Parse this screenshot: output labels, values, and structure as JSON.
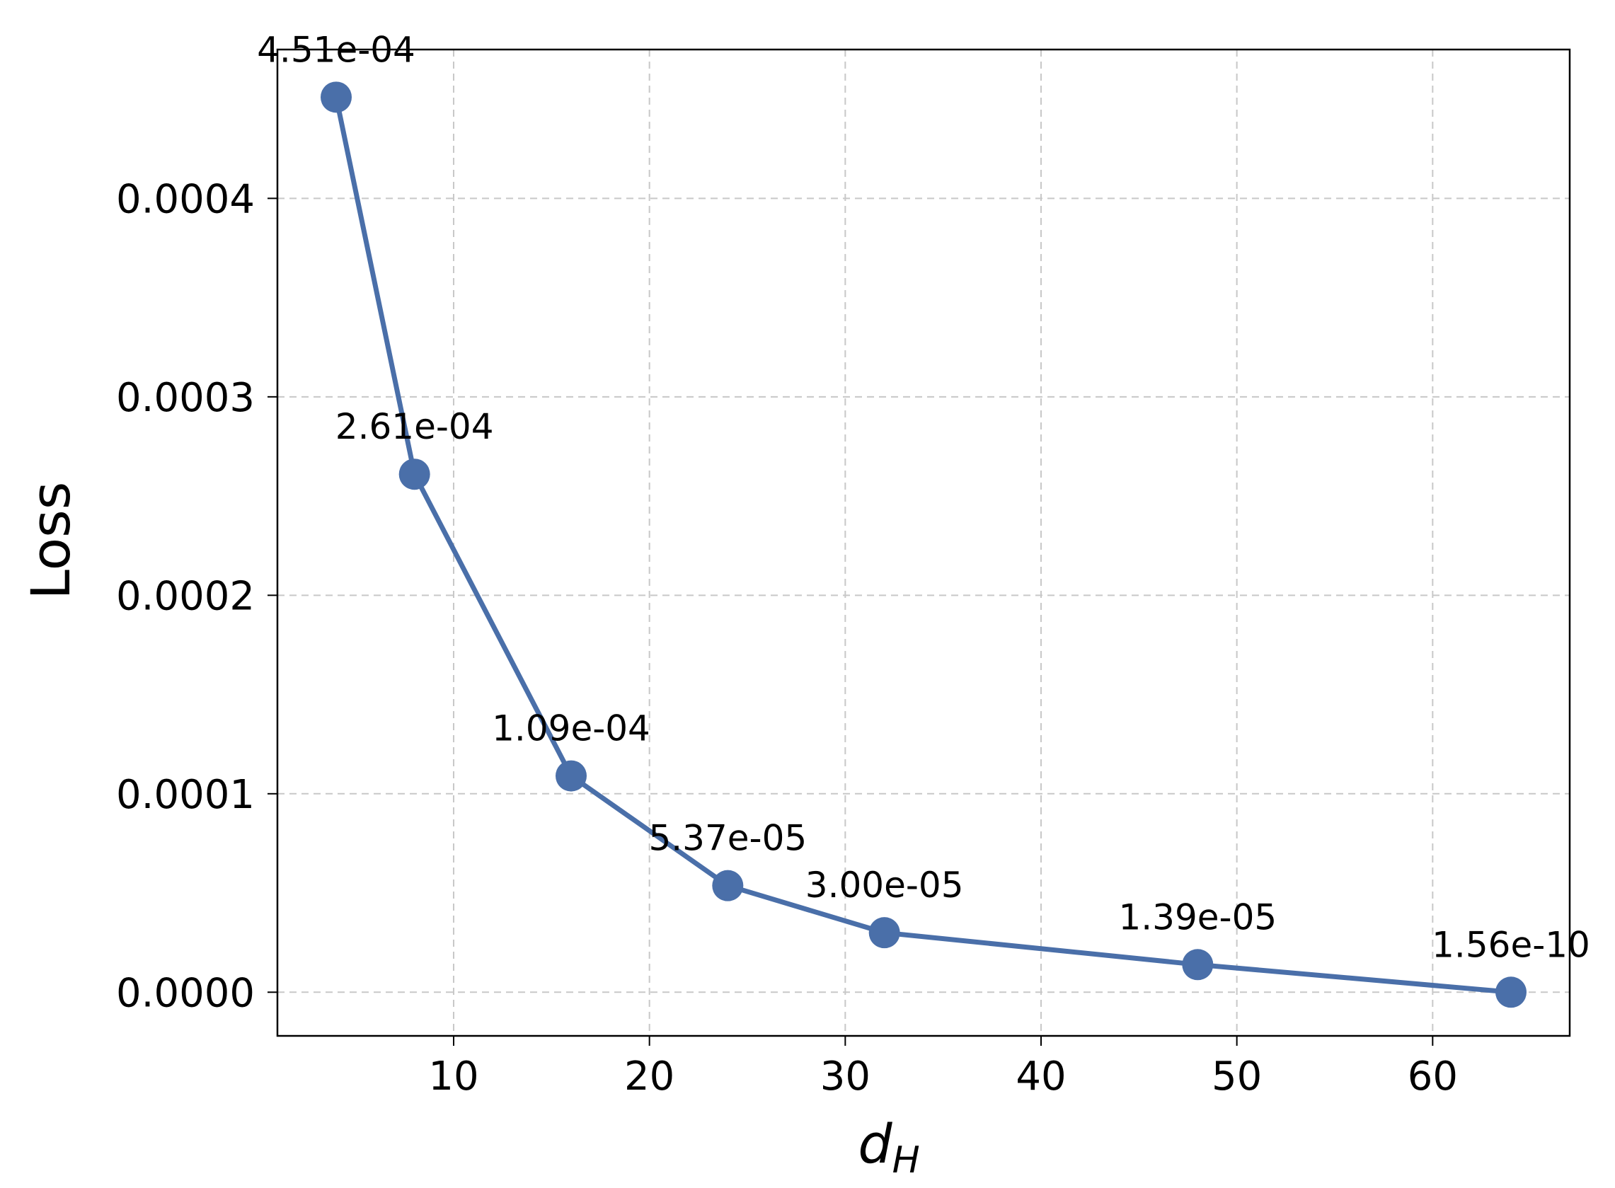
{
  "chart_data": {
    "type": "line",
    "xlabel": "d",
    "xlabel_sub": "H",
    "ylabel": "Loss",
    "xlim": [
      1,
      67
    ],
    "ylim": [
      -2.2e-05,
      0.000475
    ],
    "x_ticks": [
      10,
      20,
      30,
      40,
      50,
      60
    ],
    "x_tick_labels": [
      "10",
      "20",
      "30",
      "40",
      "50",
      "60"
    ],
    "y_ticks": [
      0,
      0.0001,
      0.0002,
      0.0003,
      0.0004
    ],
    "y_tick_labels": [
      "0.0000",
      "0.0001",
      "0.0002",
      "0.0003",
      "0.0004"
    ],
    "grid": true,
    "color": "#4a6fa9",
    "x": [
      4,
      8,
      16,
      24,
      32,
      48,
      64
    ],
    "values": [
      0.000451,
      0.000261,
      0.000109,
      5.37e-05,
      3e-05,
      1.39e-05,
      1.56e-10
    ],
    "point_labels": [
      "4.51e-04",
      "2.61e-04",
      "1.09e-04",
      "5.37e-05",
      "3.00e-05",
      "1.39e-05",
      "1.56e-10"
    ]
  }
}
